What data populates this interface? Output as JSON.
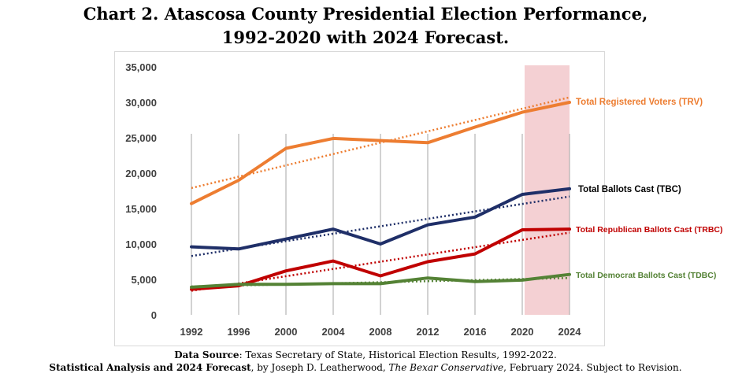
{
  "title_line1": "Chart 2. Atascosa County Presidential Election Performance,",
  "title_line2": "1992-2020 with 2024 Forecast.",
  "source": {
    "line1_label": "Data Source",
    "line1_text": ": Texas Secretary of State, Historical Election Results, 1992-2022.",
    "line2_label": "Statistical Analysis and 2024 Forecast",
    "line2_text_a": ", by Joseph D. Leatherwood, ",
    "line2_italic": "The Bexar Conservative",
    "line2_text_b": ", February 2024. Subject to Revision."
  },
  "chart_data": {
    "type": "line",
    "title": "",
    "xlabel": "",
    "ylabel": "",
    "categories": [
      "1992",
      "1996",
      "2000",
      "2004",
      "2008",
      "2012",
      "2016",
      "2020",
      "2024"
    ],
    "ylim": [
      0,
      35000
    ],
    "yticks": [
      0,
      5000,
      10000,
      15000,
      20000,
      25000,
      30000,
      35000
    ],
    "ytick_labels": [
      "0",
      "5,000",
      "10,000",
      "15,000",
      "20,000",
      "25,000",
      "30,000",
      "35,000"
    ],
    "grid": "vertical",
    "forecast_highlight": {
      "from": "2020",
      "to": "2024",
      "color": "#f4d0d3"
    },
    "series": [
      {
        "name": "Total Registered Voters (TRV)",
        "color": "#ed7d31",
        "label_color": "#ed7d31",
        "values": [
          15700,
          19000,
          23500,
          24900,
          24600,
          24300,
          26500,
          28600,
          30000
        ],
        "trend": [
          17900,
          19500,
          21100,
          22700,
          24300,
          25900,
          27500,
          29100,
          30700
        ]
      },
      {
        "name": "Total Ballots Cast (TBC)",
        "color": "#1f2f68",
        "label_color": "#000000",
        "values": [
          9600,
          9300,
          10700,
          12100,
          10000,
          12700,
          13800,
          17000,
          17800
        ],
        "trend": [
          8300,
          9350,
          10400,
          11450,
          12500,
          13550,
          14600,
          15650,
          16700
        ]
      },
      {
        "name": "Total Republican Ballots Cast (TRBC)",
        "color": "#c00000",
        "label_color": "#c00000",
        "values": [
          3600,
          4100,
          6200,
          7600,
          5500,
          7500,
          8600,
          12000,
          12100
        ],
        "trend": [
          3400,
          4425,
          5450,
          6475,
          7500,
          8525,
          9550,
          10575,
          11600
        ]
      },
      {
        "name": "Total Democrat Ballots Cast (TDBC)",
        "color": "#548235",
        "label_color": "#548235",
        "values": [
          3900,
          4300,
          4300,
          4400,
          4400,
          5200,
          4700,
          4900,
          5700
        ],
        "trend": [
          4000,
          4150,
          4300,
          4450,
          4600,
          4750,
          4900,
          5050,
          5200
        ]
      }
    ]
  }
}
